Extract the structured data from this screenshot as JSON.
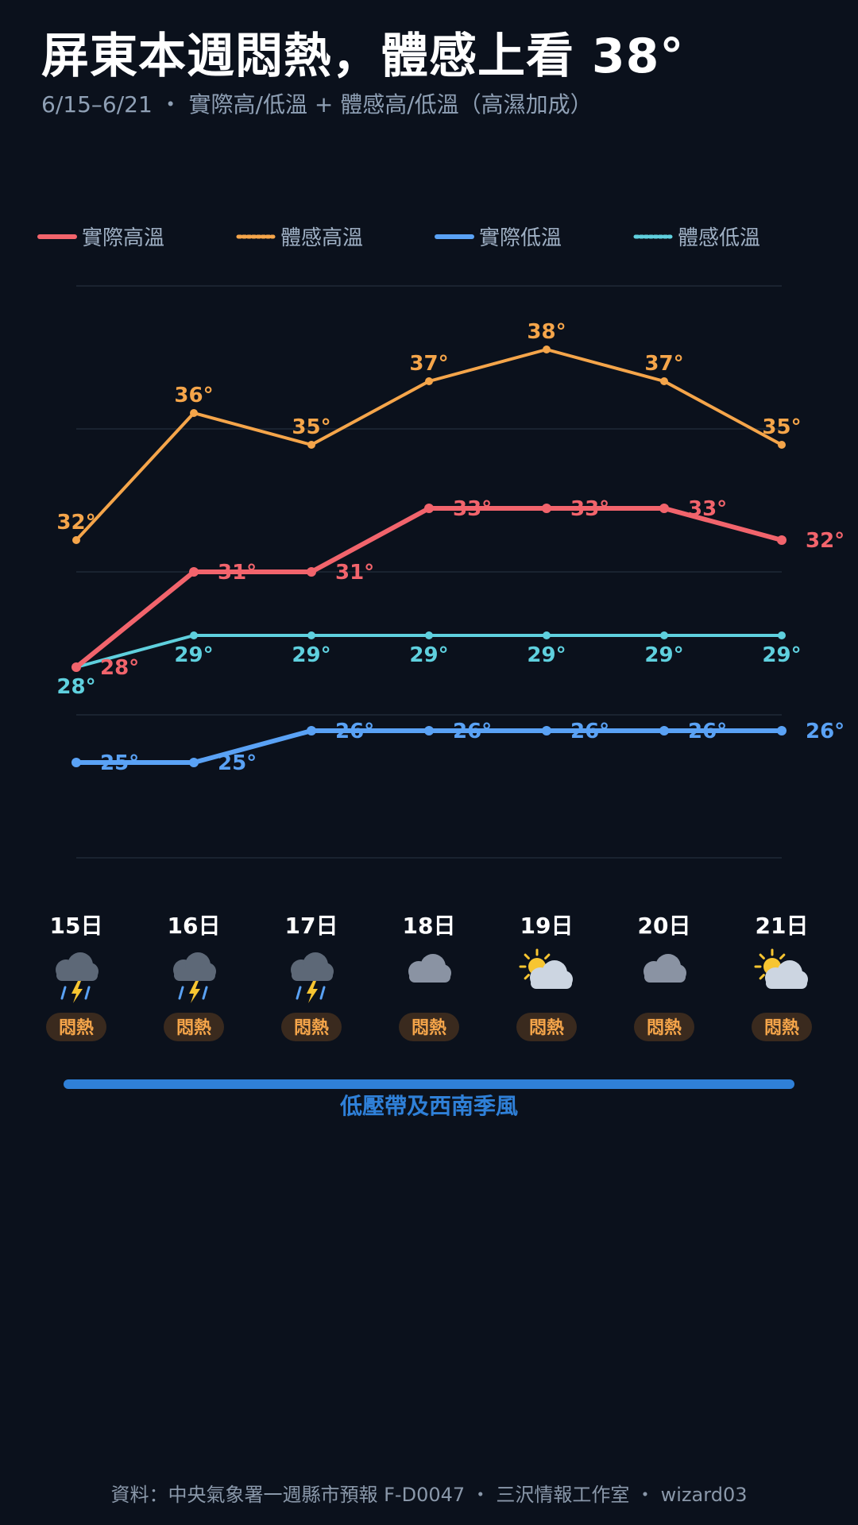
{
  "header": {
    "title": "屏東本週悶熱，體感上看 38°",
    "subtitle": "6/15–6/21 ・ 實際高/低溫 + 體感高/低溫（高濕加成）"
  },
  "colors": {
    "actual_high": "#f2646c",
    "feel_high": "#f5a54a",
    "actual_low": "#5aa2f5",
    "feel_low": "#5fd0de",
    "band": "#2f80d8",
    "background": "#0b111c"
  },
  "chart_data": {
    "type": "line",
    "categories": [
      "15日",
      "16日",
      "17日",
      "18日",
      "19日",
      "20日",
      "21日"
    ],
    "ylim": [
      22,
      40
    ],
    "grid": true,
    "legend": "top",
    "series": [
      {
        "key": "actual_high",
        "name": "實際高溫",
        "style": "solid",
        "values": [
          28,
          31,
          31,
          33,
          33,
          33,
          32
        ],
        "labels": [
          "28°",
          "31°",
          "31°",
          "33°",
          "33°",
          "33°",
          "32°"
        ]
      },
      {
        "key": "feel_high",
        "name": "體感高溫",
        "style": "dotted",
        "values": [
          32,
          36,
          35,
          37,
          38,
          37,
          35
        ],
        "labels": [
          "32°",
          "36°",
          "35°",
          "37°",
          "38°",
          "37°",
          "35°"
        ]
      },
      {
        "key": "actual_low",
        "name": "實際低溫",
        "style": "solid",
        "values": [
          25,
          25,
          26,
          26,
          26,
          26,
          26
        ],
        "labels": [
          "25°",
          "25°",
          "26°",
          "26°",
          "26°",
          "26°",
          "26°"
        ]
      },
      {
        "key": "feel_low",
        "name": "體感低溫",
        "style": "dotted",
        "values": [
          28,
          29,
          29,
          29,
          29,
          29,
          29
        ],
        "labels": [
          "28°",
          "29°",
          "29°",
          "29°",
          "29°",
          "29°",
          "29°"
        ]
      }
    ]
  },
  "days": [
    {
      "label": "15日",
      "icon": "thunderstorm-icon",
      "badge": "悶熱"
    },
    {
      "label": "16日",
      "icon": "thunderstorm-icon",
      "badge": "悶熱"
    },
    {
      "label": "17日",
      "icon": "thunderstorm-icon",
      "badge": "悶熱"
    },
    {
      "label": "18日",
      "icon": "cloud-icon",
      "badge": "悶熱"
    },
    {
      "label": "19日",
      "icon": "partly-sunny-icon",
      "badge": "悶熱"
    },
    {
      "label": "20日",
      "icon": "cloud-icon",
      "badge": "悶熱"
    },
    {
      "label": "21日",
      "icon": "partly-sunny-icon",
      "badge": "悶熱"
    }
  ],
  "weather_system": "低壓帶及西南季風",
  "footer": {
    "source": "資料：中央氣象署一週縣市預報 F-D0047 ・ 三沢情報工作室 ・ wizard03"
  }
}
